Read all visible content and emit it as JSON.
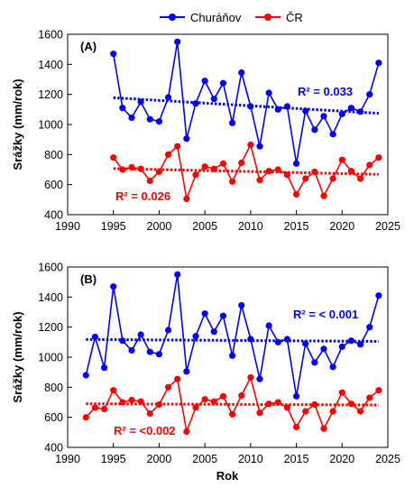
{
  "legend": [
    {
      "name": "Churáňov",
      "color": "#0000ff"
    },
    {
      "name": "ČR",
      "color": "#ff0000"
    }
  ],
  "chart_data": [
    {
      "type": "line",
      "panel_label": "(A)",
      "ylabel": "Srážky (mm/rok)",
      "xlabel": "",
      "xlim": [
        1990,
        2025
      ],
      "ylim": [
        400,
        1600
      ],
      "xticks": [
        1990,
        1995,
        2000,
        2005,
        2010,
        2015,
        2020,
        2025
      ],
      "yticks": [
        400,
        600,
        800,
        1000,
        1200,
        1400,
        1600
      ],
      "grid": false,
      "series": [
        {
          "name": "Churáňov",
          "color": "#0000ff",
          "x": [
            1995,
            1996,
            1997,
            1998,
            1999,
            2000,
            2001,
            2002,
            2003,
            2004,
            2005,
            2006,
            2007,
            2008,
            2009,
            2010,
            2011,
            2012,
            2013,
            2014,
            2015,
            2016,
            2017,
            2018,
            2019,
            2020,
            2021,
            2022,
            2023,
            2024
          ],
          "y": [
            1470,
            1110,
            1045,
            1150,
            1035,
            1020,
            1180,
            1550,
            905,
            1140,
            1290,
            1170,
            1275,
            1010,
            1345,
            1120,
            855,
            1210,
            1100,
            1120,
            740,
            1090,
            965,
            1055,
            935,
            1070,
            1110,
            1085,
            1200,
            1410
          ],
          "trend": [
            1178,
            1074
          ]
        },
        {
          "name": "ČR",
          "color": "#ff0000",
          "x": [
            1995,
            1996,
            1997,
            1998,
            1999,
            2000,
            2001,
            2002,
            2003,
            2004,
            2005,
            2006,
            2007,
            2008,
            2009,
            2010,
            2011,
            2012,
            2013,
            2014,
            2015,
            2016,
            2017,
            2018,
            2019,
            2020,
            2021,
            2022,
            2023,
            2024
          ],
          "y": [
            780,
            700,
            715,
            705,
            625,
            685,
            800,
            855,
            505,
            665,
            720,
            705,
            740,
            620,
            745,
            865,
            630,
            690,
            700,
            665,
            535,
            640,
            685,
            525,
            640,
            765,
            690,
            640,
            730,
            780
          ],
          "trend": [
            707,
            668
          ]
        }
      ],
      "annotations": [
        {
          "text": "R² = 0.033",
          "color": "#0000ff"
        },
        {
          "text": "R² = 0.026",
          "color": "#ff0000"
        }
      ]
    },
    {
      "type": "line",
      "panel_label": "(B)",
      "ylabel": "Srážky (mm/rok)",
      "xlabel": "Rok",
      "xlim": [
        1990,
        2025
      ],
      "ylim": [
        400,
        1600
      ],
      "xticks": [
        1990,
        1995,
        2000,
        2005,
        2010,
        2015,
        2020,
        2025
      ],
      "yticks": [
        400,
        600,
        800,
        1000,
        1200,
        1400,
        1600
      ],
      "grid": false,
      "series": [
        {
          "name": "Churáňov",
          "color": "#0000ff",
          "x": [
            1992,
            1993,
            1994,
            1995,
            1996,
            1997,
            1998,
            1999,
            2000,
            2001,
            2002,
            2003,
            2004,
            2005,
            2006,
            2007,
            2008,
            2009,
            2010,
            2011,
            2012,
            2013,
            2014,
            2015,
            2016,
            2017,
            2018,
            2019,
            2020,
            2021,
            2022,
            2023,
            2024
          ],
          "y": [
            880,
            1135,
            930,
            1470,
            1110,
            1045,
            1150,
            1035,
            1020,
            1180,
            1550,
            905,
            1140,
            1290,
            1170,
            1275,
            1010,
            1345,
            1120,
            855,
            1210,
            1100,
            1120,
            740,
            1090,
            965,
            1055,
            935,
            1070,
            1110,
            1085,
            1200,
            1410
          ],
          "trend": [
            1118,
            1105
          ]
        },
        {
          "name": "ČR",
          "color": "#ff0000",
          "x": [
            1992,
            1993,
            1994,
            1995,
            1996,
            1997,
            1998,
            1999,
            2000,
            2001,
            2002,
            2003,
            2004,
            2005,
            2006,
            2007,
            2008,
            2009,
            2010,
            2011,
            2012,
            2013,
            2014,
            2015,
            2016,
            2017,
            2018,
            2019,
            2020,
            2021,
            2022,
            2023,
            2024
          ],
          "y": [
            600,
            665,
            655,
            780,
            700,
            715,
            705,
            625,
            685,
            800,
            855,
            505,
            665,
            720,
            705,
            740,
            620,
            745,
            865,
            630,
            690,
            700,
            665,
            535,
            640,
            685,
            525,
            640,
            765,
            690,
            640,
            730,
            780
          ],
          "trend": [
            690,
            682
          ]
        }
      ],
      "annotations": [
        {
          "text": "R² = < 0.001",
          "color": "#0000ff"
        },
        {
          "text": "R² = <0.002",
          "color": "#ff0000"
        }
      ]
    }
  ]
}
